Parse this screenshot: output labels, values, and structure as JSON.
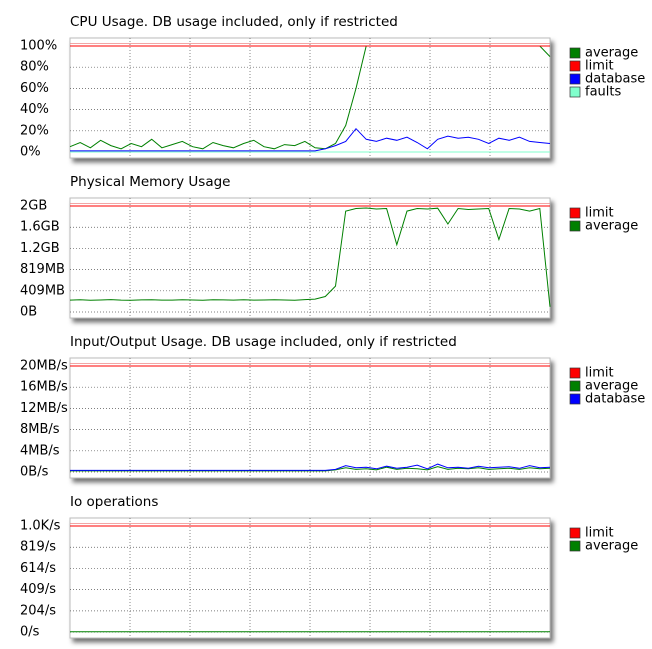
{
  "chart_data": [
    {
      "type": "line",
      "title": "CPU Usage. DB usage included, only if restricted",
      "ylim": [
        0,
        100
      ],
      "yticks": [
        {
          "value": 0,
          "label": "0%"
        },
        {
          "value": 20,
          "label": "20%"
        },
        {
          "value": 40,
          "label": "40%"
        },
        {
          "value": 60,
          "label": "60%"
        },
        {
          "value": 80,
          "label": "80%"
        },
        {
          "value": 100,
          "label": "100%"
        }
      ],
      "series": [
        {
          "name": "average",
          "color": "#008000",
          "values": [
            5,
            9,
            4,
            11,
            6,
            3,
            8,
            5,
            12,
            4,
            7,
            10,
            5,
            3,
            9,
            6,
            4,
            8,
            11,
            5,
            3,
            7,
            6,
            10,
            4,
            3,
            8,
            25,
            60,
            100,
            100,
            100,
            100,
            100,
            100,
            100,
            100,
            100,
            100,
            100,
            100,
            100,
            100,
            100,
            100,
            100,
            100,
            90
          ]
        },
        {
          "name": "limit",
          "color": "#ff0000",
          "values": [
            100,
            100,
            100,
            100,
            100,
            100,
            100,
            100,
            100,
            100,
            100,
            100,
            100,
            100,
            100,
            100,
            100,
            100,
            100,
            100,
            100,
            100,
            100,
            100,
            100,
            100,
            100,
            100,
            100,
            100,
            100,
            100,
            100,
            100,
            100,
            100,
            100,
            100,
            100,
            100,
            100,
            100,
            100,
            100,
            100,
            100,
            100,
            100
          ]
        },
        {
          "name": "database",
          "color": "#0000ff",
          "values": [
            1,
            1,
            1,
            1,
            1,
            1,
            1,
            1,
            1,
            1,
            1,
            1,
            1,
            1,
            1,
            1,
            1,
            1,
            1,
            1,
            1,
            1,
            1,
            1,
            1,
            3,
            6,
            10,
            22,
            12,
            10,
            13,
            11,
            14,
            9,
            3,
            12,
            15,
            13,
            14,
            12,
            8,
            13,
            11,
            14,
            10,
            9,
            8
          ]
        },
        {
          "name": "faults",
          "color": "#80ffcc",
          "values": [
            0,
            0,
            0,
            0,
            0,
            0,
            0,
            0,
            0,
            0,
            0,
            0,
            0,
            0,
            0,
            0,
            0,
            0,
            0,
            0,
            0,
            0,
            0,
            0,
            0,
            0,
            0,
            0,
            0,
            0,
            0,
            0,
            0,
            0,
            0,
            0,
            0,
            0,
            0,
            0,
            0,
            0,
            0,
            0,
            0,
            0,
            0,
            0
          ]
        }
      ]
    },
    {
      "type": "line",
      "title": "Physical Memory Usage",
      "ylim": [
        0,
        2048
      ],
      "yticks": [
        {
          "value": 0,
          "label": "0B"
        },
        {
          "value": 409,
          "label": "409MB"
        },
        {
          "value": 819,
          "label": "819MB"
        },
        {
          "value": 1228,
          "label": "1.2GB"
        },
        {
          "value": 1638,
          "label": "1.6GB"
        },
        {
          "value": 2048,
          "label": "2GB"
        }
      ],
      "series": [
        {
          "name": "limit",
          "color": "#ff0000",
          "values": [
            2048,
            2048,
            2048,
            2048,
            2048,
            2048,
            2048,
            2048,
            2048,
            2048,
            2048,
            2048,
            2048,
            2048,
            2048,
            2048,
            2048,
            2048,
            2048,
            2048,
            2048,
            2048,
            2048,
            2048,
            2048,
            2048,
            2048,
            2048,
            2048,
            2048,
            2048,
            2048,
            2048,
            2048,
            2048,
            2048,
            2048,
            2048,
            2048,
            2048,
            2048,
            2048,
            2048,
            2048,
            2048,
            2048,
            2048,
            2048
          ]
        },
        {
          "name": "average",
          "color": "#008000",
          "values": [
            230,
            235,
            228,
            232,
            240,
            230,
            226,
            233,
            238,
            230,
            229,
            235,
            231,
            227,
            236,
            233,
            230,
            238,
            229,
            232,
            236,
            231,
            228,
            240,
            250,
            300,
            500,
            1950,
            2000,
            2010,
            1990,
            2000,
            1300,
            1950,
            2000,
            1990,
            2005,
            1700,
            2000,
            1980,
            1990,
            2000,
            1400,
            2000,
            1990,
            1950,
            2000,
            100
          ]
        }
      ]
    },
    {
      "type": "line",
      "title": "Input/Output Usage. DB usage included, only if restricted",
      "ylim": [
        0,
        20
      ],
      "yticks": [
        {
          "value": 0,
          "label": "0B/s"
        },
        {
          "value": 4,
          "label": "4MB/s"
        },
        {
          "value": 8,
          "label": "8MB/s"
        },
        {
          "value": 12,
          "label": "12MB/s"
        },
        {
          "value": 16,
          "label": "16MB/s"
        },
        {
          "value": 20,
          "label": "20MB/s"
        }
      ],
      "series": [
        {
          "name": "limit",
          "color": "#ff0000",
          "values": [
            20,
            20,
            20,
            20,
            20,
            20,
            20,
            20,
            20,
            20,
            20,
            20,
            20,
            20,
            20,
            20,
            20,
            20,
            20,
            20,
            20,
            20,
            20,
            20,
            20,
            20,
            20,
            20,
            20,
            20,
            20,
            20,
            20,
            20,
            20,
            20,
            20,
            20,
            20,
            20,
            20,
            20,
            20,
            20,
            20,
            20,
            20,
            20
          ]
        },
        {
          "name": "average",
          "color": "#008000",
          "values": [
            0.2,
            0.2,
            0.2,
            0.2,
            0.2,
            0.2,
            0.2,
            0.2,
            0.2,
            0.2,
            0.2,
            0.2,
            0.2,
            0.2,
            0.2,
            0.2,
            0.2,
            0.2,
            0.2,
            0.2,
            0.2,
            0.2,
            0.2,
            0.2,
            0.2,
            0.2,
            0.4,
            0.8,
            0.5,
            0.6,
            0.4,
            0.9,
            0.5,
            0.7,
            0.6,
            0.4,
            1.0,
            0.5,
            0.7,
            0.6,
            0.8,
            0.5,
            0.6,
            0.7,
            0.5,
            0.8,
            0.6,
            0.7
          ]
        },
        {
          "name": "database",
          "color": "#0000ff",
          "values": [
            0.3,
            0.3,
            0.3,
            0.3,
            0.3,
            0.3,
            0.3,
            0.3,
            0.3,
            0.3,
            0.3,
            0.3,
            0.3,
            0.3,
            0.3,
            0.3,
            0.3,
            0.3,
            0.3,
            0.3,
            0.3,
            0.3,
            0.3,
            0.3,
            0.3,
            0.3,
            0.5,
            1.2,
            0.8,
            0.9,
            0.6,
            1.1,
            0.7,
            0.9,
            1.3,
            0.6,
            1.5,
            0.8,
            0.9,
            0.7,
            1.1,
            0.8,
            0.9,
            1.0,
            0.7,
            1.2,
            0.8,
            0.9
          ]
        }
      ]
    },
    {
      "type": "line",
      "title": "Io operations",
      "ylim": [
        0,
        1024
      ],
      "yticks": [
        {
          "value": 0,
          "label": "0/s"
        },
        {
          "value": 204,
          "label": "204/s"
        },
        {
          "value": 409,
          "label": "409/s"
        },
        {
          "value": 614,
          "label": "614/s"
        },
        {
          "value": 819,
          "label": "819/s"
        },
        {
          "value": 1024,
          "label": "1.0K/s"
        }
      ],
      "series": [
        {
          "name": "limit",
          "color": "#ff0000",
          "values": [
            1024,
            1024,
            1024,
            1024,
            1024,
            1024,
            1024,
            1024,
            1024,
            1024,
            1024,
            1024,
            1024,
            1024,
            1024,
            1024,
            1024,
            1024,
            1024,
            1024,
            1024,
            1024,
            1024,
            1024,
            1024,
            1024,
            1024,
            1024,
            1024,
            1024,
            1024,
            1024,
            1024,
            1024,
            1024,
            1024,
            1024,
            1024,
            1024,
            1024,
            1024,
            1024,
            1024,
            1024,
            1024,
            1024,
            1024,
            1024
          ]
        },
        {
          "name": "average",
          "color": "#008000",
          "values": [
            2,
            2,
            2,
            2,
            2,
            2,
            2,
            2,
            2,
            2,
            2,
            2,
            2,
            2,
            2,
            2,
            2,
            2,
            2,
            2,
            2,
            2,
            2,
            2,
            2,
            2,
            2,
            2,
            2,
            2,
            2,
            2,
            2,
            2,
            2,
            2,
            2,
            2,
            2,
            2,
            2,
            2,
            2,
            2,
            2,
            2,
            2,
            2
          ]
        }
      ]
    }
  ]
}
